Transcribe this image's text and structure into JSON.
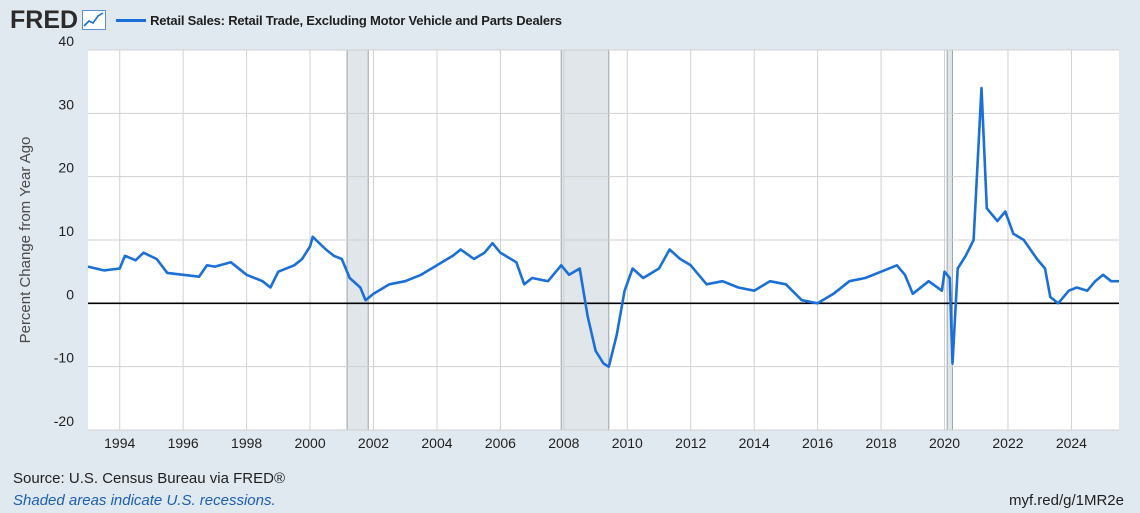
{
  "header": {
    "logo": "FRED",
    "legend_label": "Retail Sales: Retail Trade, Excluding Motor Vehicle and Parts Dealers",
    "series_color": "#1a6fd8"
  },
  "footer": {
    "source": "Source: U.S. Census Bureau via FRED®",
    "note": "Shaded areas indicate U.S. recessions.",
    "url": "myf.red/g/1MR2e"
  },
  "chart_data": {
    "type": "line",
    "title": "Retail Sales: Retail Trade, Excluding Motor Vehicle and Parts Dealers",
    "ylabel": "Percent Change from Year Ago",
    "xlabel": "",
    "xlim": [
      "1993-01",
      "2025-07"
    ],
    "ylim": [
      -20,
      40
    ],
    "yticks": [
      "40",
      "30",
      "20",
      "10",
      "0",
      "-10",
      "-20"
    ],
    "xticks": [
      "1994",
      "1996",
      "1998",
      "2000",
      "2002",
      "2004",
      "2006",
      "2008",
      "2010",
      "2012",
      "2014",
      "2016",
      "2018",
      "2020",
      "2022",
      "2024"
    ],
    "grid": true,
    "recessions": [
      {
        "start": "2001-03",
        "end": "2001-11"
      },
      {
        "start": "2007-12",
        "end": "2009-06"
      },
      {
        "start": "2020-02",
        "end": "2020-04"
      }
    ],
    "series": [
      {
        "name": "Retail Sales: Retail Trade, Excluding Motor Vehicle and Parts Dealers",
        "points": [
          [
            "1993-01",
            5.8
          ],
          [
            "1993-07",
            5.2
          ],
          [
            "1994-01",
            5.5
          ],
          [
            "1994-03",
            7.5
          ],
          [
            "1994-07",
            6.8
          ],
          [
            "1994-10",
            8.0
          ],
          [
            "1995-03",
            7.0
          ],
          [
            "1995-07",
            4.8
          ],
          [
            "1996-01",
            4.5
          ],
          [
            "1996-07",
            4.2
          ],
          [
            "1996-10",
            6.0
          ],
          [
            "1997-01",
            5.8
          ],
          [
            "1997-07",
            6.5
          ],
          [
            "1998-01",
            4.5
          ],
          [
            "1998-07",
            3.5
          ],
          [
            "1998-10",
            2.5
          ],
          [
            "1999-01",
            5.0
          ],
          [
            "1999-07",
            6.0
          ],
          [
            "1999-10",
            7.0
          ],
          [
            "2000-01",
            9.0
          ],
          [
            "2000-02",
            10.5
          ],
          [
            "2000-07",
            8.5
          ],
          [
            "2000-10",
            7.5
          ],
          [
            "2001-01",
            7.0
          ],
          [
            "2001-04",
            4.0
          ],
          [
            "2001-08",
            2.5
          ],
          [
            "2001-10",
            0.5
          ],
          [
            "2002-01",
            1.5
          ],
          [
            "2002-07",
            3.0
          ],
          [
            "2003-01",
            3.5
          ],
          [
            "2003-07",
            4.5
          ],
          [
            "2004-01",
            6.0
          ],
          [
            "2004-07",
            7.5
          ],
          [
            "2004-10",
            8.5
          ],
          [
            "2005-03",
            7.0
          ],
          [
            "2005-07",
            8.0
          ],
          [
            "2005-10",
            9.5
          ],
          [
            "2006-01",
            8.0
          ],
          [
            "2006-07",
            6.5
          ],
          [
            "2006-10",
            3.0
          ],
          [
            "2007-01",
            4.0
          ],
          [
            "2007-07",
            3.5
          ],
          [
            "2007-12",
            6.0
          ],
          [
            "2008-03",
            4.5
          ],
          [
            "2008-07",
            5.5
          ],
          [
            "2008-10",
            -2.0
          ],
          [
            "2009-01",
            -7.5
          ],
          [
            "2009-04",
            -9.5
          ],
          [
            "2009-06",
            -10.0
          ],
          [
            "2009-09",
            -5.0
          ],
          [
            "2009-12",
            2.0
          ],
          [
            "2010-03",
            5.5
          ],
          [
            "2010-07",
            4.0
          ],
          [
            "2011-01",
            5.5
          ],
          [
            "2011-05",
            8.5
          ],
          [
            "2011-09",
            7.0
          ],
          [
            "2012-01",
            6.0
          ],
          [
            "2012-07",
            3.0
          ],
          [
            "2013-01",
            3.5
          ],
          [
            "2013-07",
            2.5
          ],
          [
            "2014-01",
            2.0
          ],
          [
            "2014-07",
            3.5
          ],
          [
            "2015-01",
            3.0
          ],
          [
            "2015-07",
            0.5
          ],
          [
            "2016-01",
            0.0
          ],
          [
            "2016-07",
            1.5
          ],
          [
            "2017-01",
            3.5
          ],
          [
            "2017-07",
            4.0
          ],
          [
            "2018-01",
            5.0
          ],
          [
            "2018-07",
            6.0
          ],
          [
            "2018-10",
            4.5
          ],
          [
            "2019-01",
            1.5
          ],
          [
            "2019-07",
            3.5
          ],
          [
            "2019-12",
            2.0
          ],
          [
            "2020-01",
            5.0
          ],
          [
            "2020-03",
            4.0
          ],
          [
            "2020-04",
            -9.5
          ],
          [
            "2020-06",
            5.5
          ],
          [
            "2020-09",
            7.5
          ],
          [
            "2020-12",
            10.0
          ],
          [
            "2021-03",
            34.0
          ],
          [
            "2021-05",
            15.0
          ],
          [
            "2021-09",
            13.0
          ],
          [
            "2021-12",
            14.5
          ],
          [
            "2022-03",
            11.0
          ],
          [
            "2022-07",
            10.0
          ],
          [
            "2022-12",
            7.0
          ],
          [
            "2023-03",
            5.5
          ],
          [
            "2023-05",
            1.0
          ],
          [
            "2023-08",
            0.0
          ],
          [
            "2023-12",
            2.0
          ],
          [
            "2024-03",
            2.5
          ],
          [
            "2024-07",
            2.0
          ],
          [
            "2024-10",
            3.5
          ],
          [
            "2025-01",
            4.5
          ],
          [
            "2025-04",
            3.5
          ],
          [
            "2025-07",
            3.5
          ]
        ]
      }
    ]
  }
}
